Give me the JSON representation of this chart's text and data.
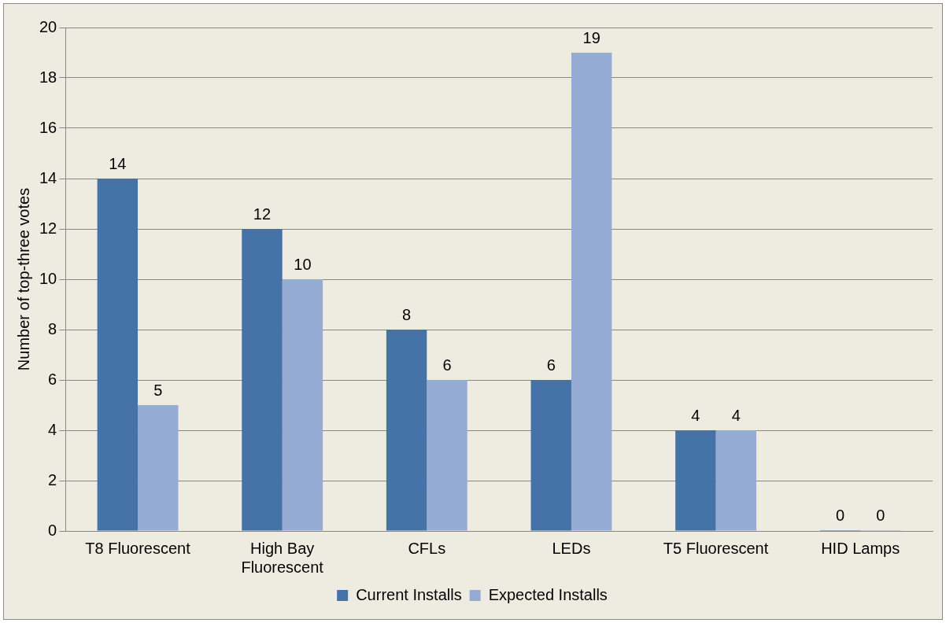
{
  "chart_data": {
    "type": "bar",
    "ylabel": "Number of top-three votes",
    "categories": [
      "T8 Fluorescent",
      "High Bay Fluorescent",
      "CFLs",
      "LEDs",
      "T5 Fluorescent",
      "HID Lamps"
    ],
    "series": [
      {
        "name": "Current Installs",
        "color": "#4572a7",
        "values": [
          14,
          12,
          8,
          6,
          4,
          0
        ]
      },
      {
        "name": "Expected Installs",
        "color": "#95abd3",
        "values": [
          5,
          10,
          6,
          19,
          4,
          0
        ]
      }
    ],
    "ylim": [
      0,
      20
    ],
    "yticks": [
      0,
      2,
      4,
      6,
      8,
      10,
      12,
      14,
      16,
      18,
      20
    ],
    "grid": "y",
    "legend": "bottom",
    "data_labels": true
  }
}
